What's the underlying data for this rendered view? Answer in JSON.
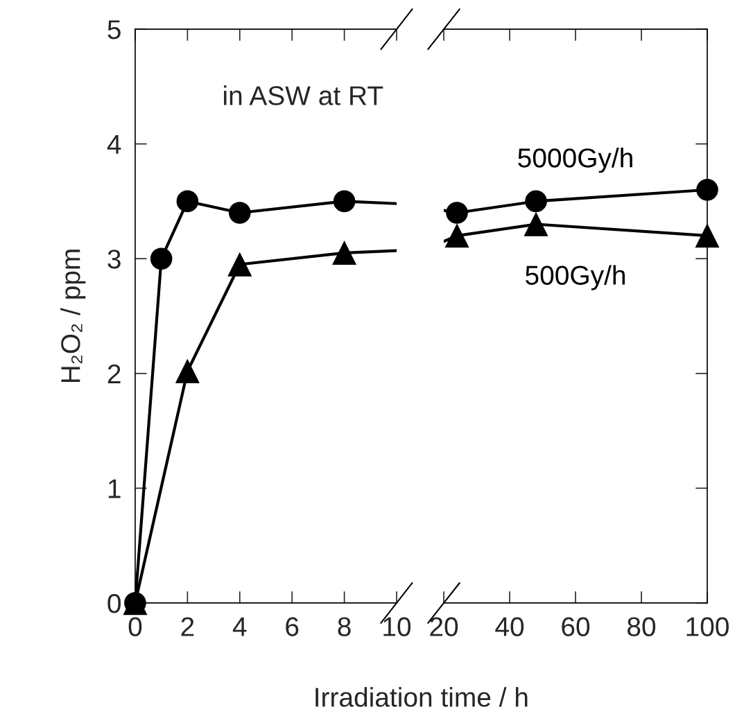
{
  "chart_data": [
    {
      "type": "line",
      "ylabel": "H₂O₂ / ppm",
      "xlabel": "Irradiation time / h",
      "annotations": [
        "in ASW at RT"
      ],
      "xlim": [
        0,
        10
      ],
      "xticks": [
        0,
        2,
        4,
        6,
        8,
        10
      ],
      "ylim": [
        0,
        5
      ],
      "yticks": [
        0,
        1,
        2,
        3,
        4,
        5
      ],
      "grid": false,
      "legend": false,
      "line_style": "solid",
      "series": [
        {
          "color": "#000000",
          "marker": "circle",
          "x": [
            0,
            1,
            2,
            4,
            8,
            10
          ],
          "values": [
            0,
            3.0,
            3.5,
            3.4,
            3.5,
            3.48
          ]
        },
        {
          "color": "#000000",
          "marker": "triangle",
          "x": [
            0,
            2,
            4,
            8,
            10
          ],
          "values": [
            0,
            2.02,
            2.95,
            3.05,
            3.07
          ]
        }
      ]
    },
    {
      "type": "line",
      "xlim": [
        20,
        100
      ],
      "xticks": [
        20,
        40,
        60,
        80,
        100
      ],
      "ylim": [
        0,
        5
      ],
      "yticks": [
        0,
        1,
        2,
        3,
        4,
        5
      ],
      "tick_labels": "x",
      "grid": false,
      "legend": false,
      "line_style": "solid",
      "series": [
        {
          "name": "5000Gy/h",
          "color": "#000000",
          "marker": "circle",
          "x": [
            20,
            24,
            48,
            100
          ],
          "values": [
            3.42,
            3.4,
            3.5,
            3.6
          ]
        },
        {
          "name": "500Gy/h",
          "color": "#000000",
          "marker": "triangle",
          "x": [
            20,
            24,
            48,
            100
          ],
          "values": [
            3.15,
            3.2,
            3.3,
            3.2
          ]
        }
      ]
    }
  ]
}
